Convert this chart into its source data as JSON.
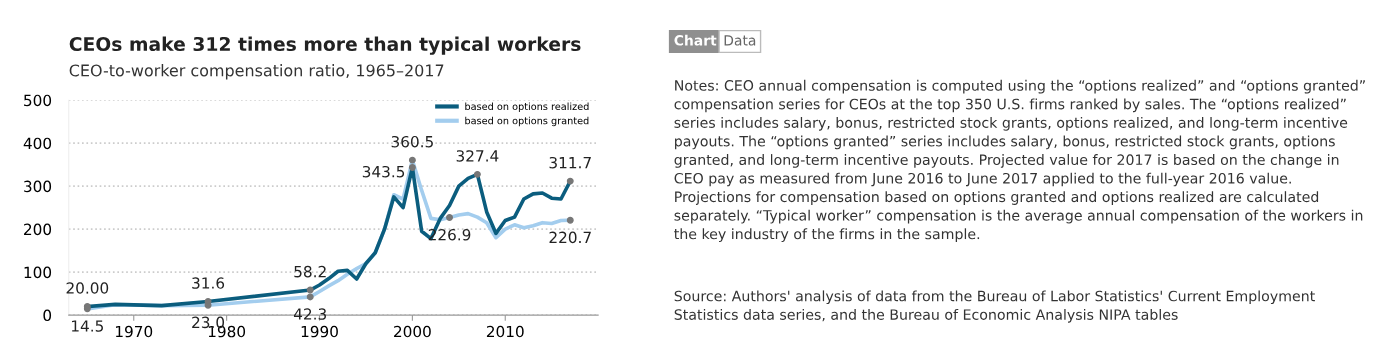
{
  "chart_data": {
    "type": "line",
    "title": "CEOs make 312 times more than typical workers",
    "subtitle": "CEO-to-worker compensation ratio, 1965–2017",
    "x": [
      1965,
      1968,
      1973,
      1978,
      1989,
      1990,
      1991,
      1992,
      1993,
      1994,
      1995,
      1996,
      1997,
      1998,
      1999,
      2000,
      2001,
      2002,
      2003,
      2004,
      2005,
      2006,
      2007,
      2008,
      2009,
      2010,
      2011,
      2012,
      2013,
      2014,
      2015,
      2016,
      2017
    ],
    "series": [
      {
        "name": "based on options realized",
        "color": "#0b5d7e",
        "values": [
          20.0,
          25,
          22,
          31.6,
          58.2,
          70,
          85,
          102,
          104,
          84,
          120,
          145,
          200,
          275,
          250,
          343.5,
          195,
          178,
          225,
          255,
          300,
          318,
          327.4,
          240,
          190,
          220,
          228,
          270,
          282,
          284,
          272,
          270,
          311.7
        ],
        "value_labels": [
          "20.00",
          null,
          null,
          "31.6",
          "58.2",
          null,
          null,
          null,
          null,
          null,
          null,
          null,
          null,
          null,
          null,
          "343.5",
          null,
          null,
          null,
          null,
          null,
          null,
          "327.4",
          null,
          null,
          null,
          null,
          null,
          null,
          null,
          null,
          null,
          "311.7"
        ]
      },
      {
        "name": "based on options granted",
        "color": "#a3cdee",
        "values": [
          14.5,
          24,
          22,
          23.0,
          42.3,
          55,
          68,
          80,
          95,
          108,
          120,
          145,
          200,
          280,
          270,
          360.5,
          290,
          225,
          222,
          226.9,
          233,
          236,
          228,
          215,
          180,
          200,
          210,
          203,
          208,
          215,
          213,
          220,
          220.7
        ],
        "value_labels": [
          "14.5",
          null,
          null,
          "23.0",
          "42.3",
          null,
          null,
          null,
          null,
          null,
          null,
          null,
          null,
          null,
          null,
          "360.5",
          null,
          null,
          null,
          "226.9",
          null,
          null,
          null,
          null,
          null,
          null,
          null,
          null,
          null,
          null,
          null,
          null,
          "220.7"
        ]
      }
    ],
    "xlim": [
      1963,
      2020
    ],
    "xticks": [
      1970,
      1980,
      1990,
      2000,
      2010
    ],
    "ylim": [
      0,
      500
    ],
    "yticks": [
      0,
      100,
      200,
      300,
      400,
      500
    ],
    "grid": "y",
    "legend": "top right",
    "marker": "none",
    "line_style": "solid",
    "annotations": [
      "Chart",
      "Data",
      "Notes: CEO annual compensation is computed using the “options realized” and “options granted” compensation series for CEOs at the top 350 U.S. firms ranked by sales. The “options realized” series includes salary, bonus, restricted stock grants, options realized, and long-term incentive payouts. The “options granted” series includes salary, bonus, restricted stock grants, options granted, and long-term incentive payouts. Projected value for 2017 is based on the change in CEO pay as measured from June 2016 to June 2017 applied to the full-year 2016 value. Projections for compensation based on options granted and options realized are calculated separately. “Typical worker” compensation is the average annual compensation of the workers in the key industry of the firms in the sample.",
      "Source: Authors' analysis of data from the Bureau of Labor Statistics' Current Employment Statistics data series, and the Bureau of Economic Analysis NIPA tables"
    ]
  }
}
